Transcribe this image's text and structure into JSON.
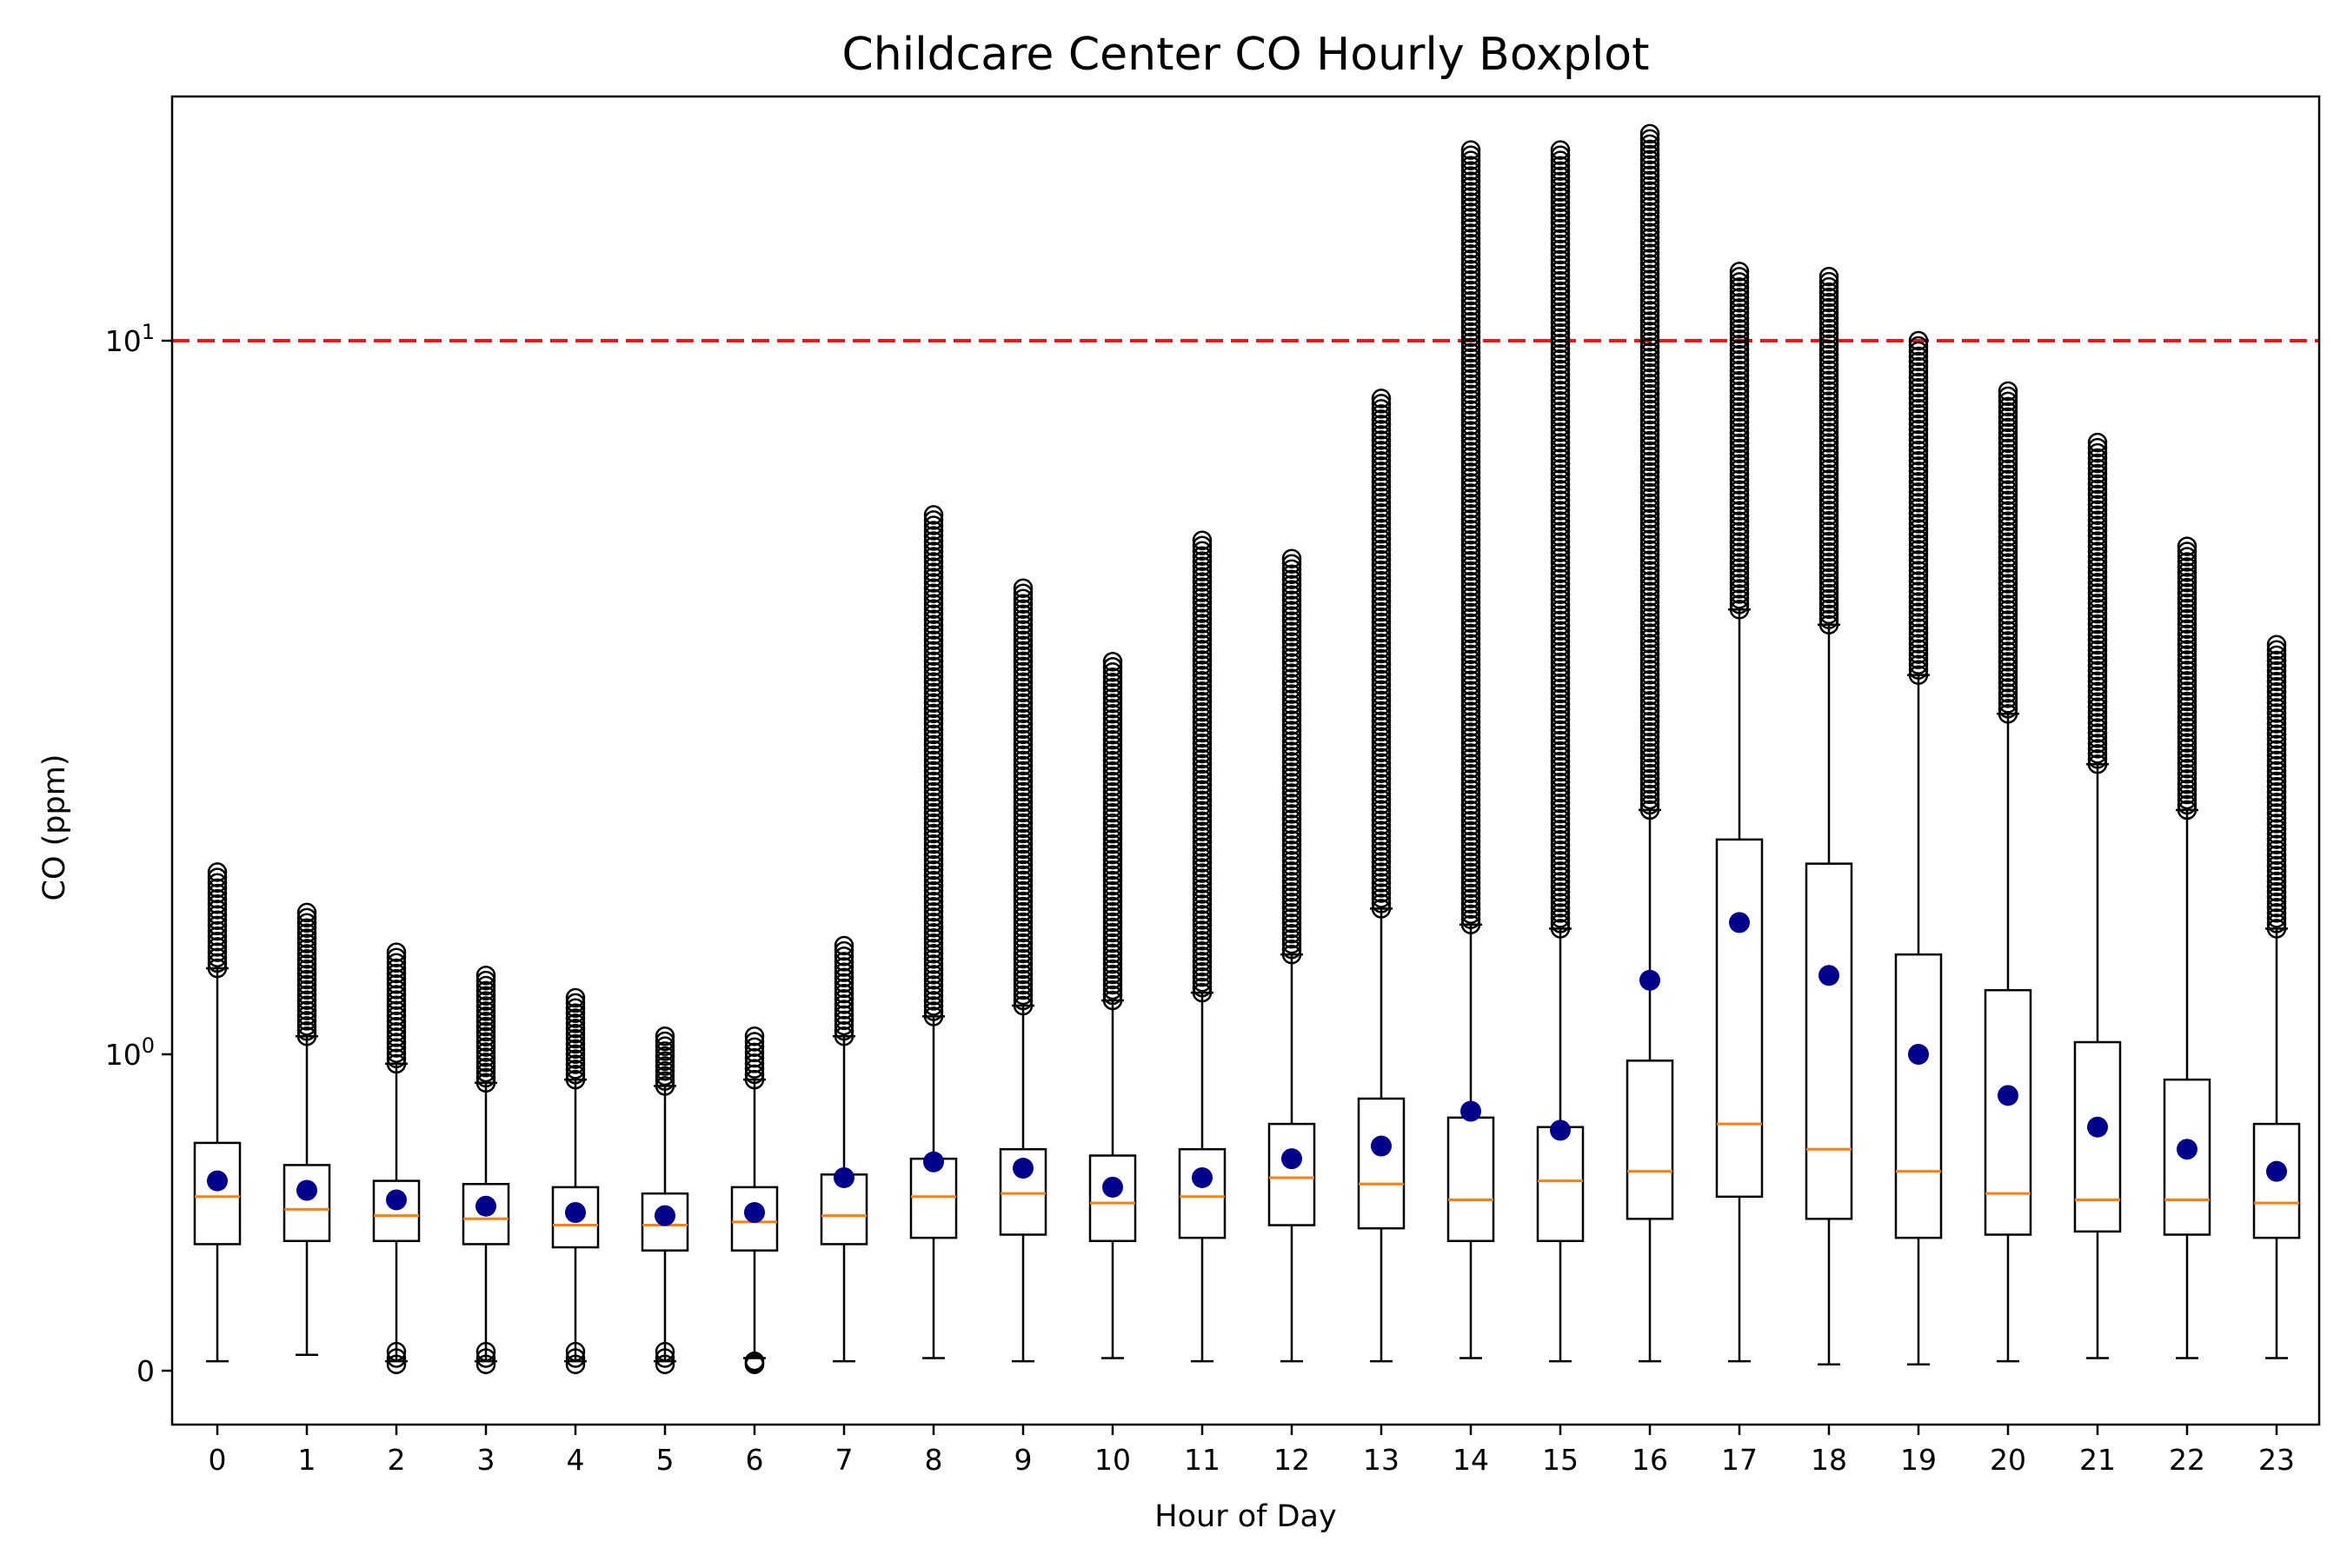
{
  "chart_data": {
    "type": "boxplot",
    "title": "Childcare Center CO Hourly Boxplot",
    "xlabel": "Hour of Day",
    "ylabel": "CO (ppm)",
    "yscale": "symlog",
    "ytick_labels": [
      "0",
      "10⁰",
      "10¹"
    ],
    "ytick_values": [
      0,
      1,
      10
    ],
    "threshold": {
      "value": 10,
      "color": "#e41a1c",
      "style": "dashed"
    },
    "colors": {
      "median": "#ff7f0e",
      "mean": "#00008b",
      "box": "#000000",
      "flier": "#000000"
    },
    "grid": false,
    "categories": [
      "0",
      "1",
      "2",
      "3",
      "4",
      "5",
      "6",
      "7",
      "8",
      "9",
      "10",
      "11",
      "12",
      "13",
      "14",
      "15",
      "16",
      "17",
      "18",
      "19",
      "20",
      "21",
      "22",
      "23"
    ],
    "boxes": [
      {
        "whislo": 0.03,
        "q1": 0.4,
        "med": 0.55,
        "q3": 0.72,
        "whishi": 1.32,
        "mean": 0.6,
        "fliers_hi": [
          1.32,
          1.8
        ],
        "fliers_lo": []
      },
      {
        "whislo": 0.05,
        "q1": 0.41,
        "med": 0.51,
        "q3": 0.65,
        "whishi": 1.06,
        "mean": 0.57,
        "fliers_hi": [
          1.06,
          1.58
        ],
        "fliers_lo": []
      },
      {
        "whislo": 0.03,
        "q1": 0.41,
        "med": 0.49,
        "q3": 0.6,
        "whishi": 0.97,
        "mean": 0.54,
        "fliers_hi": [
          0.97,
          1.39
        ],
        "fliers_lo": [
          0.02,
          0.06
        ]
      },
      {
        "whislo": 0.03,
        "q1": 0.4,
        "med": 0.48,
        "q3": 0.59,
        "whishi": 0.91,
        "mean": 0.52,
        "fliers_hi": [
          0.91,
          1.29
        ],
        "fliers_lo": [
          0.02,
          0.06
        ]
      },
      {
        "whislo": 0.03,
        "q1": 0.39,
        "med": 0.46,
        "q3": 0.58,
        "whishi": 0.92,
        "mean": 0.5,
        "fliers_hi": [
          0.92,
          1.2
        ],
        "fliers_lo": [
          0.02,
          0.06
        ]
      },
      {
        "whislo": 0.03,
        "q1": 0.38,
        "med": 0.46,
        "q3": 0.56,
        "whishi": 0.9,
        "mean": 0.49,
        "fliers_hi": [
          0.9,
          1.06
        ],
        "fliers_lo": [
          0.02,
          0.06
        ]
      },
      {
        "whislo": 0.04,
        "q1": 0.38,
        "med": 0.47,
        "q3": 0.58,
        "whishi": 0.92,
        "mean": 0.5,
        "fliers_hi": [
          0.92,
          1.06
        ],
        "fliers_lo": [
          0.02,
          0.03
        ]
      },
      {
        "whislo": 0.03,
        "q1": 0.4,
        "med": 0.49,
        "q3": 0.62,
        "whishi": 1.06,
        "mean": 0.61,
        "fliers_hi": [
          1.06,
          1.42
        ],
        "fliers_lo": []
      },
      {
        "whislo": 0.04,
        "q1": 0.42,
        "med": 0.55,
        "q3": 0.67,
        "whishi": 1.13,
        "mean": 0.66,
        "fliers_hi": [
          1.13,
          5.7
        ],
        "fliers_lo": []
      },
      {
        "whislo": 0.03,
        "q1": 0.43,
        "med": 0.56,
        "q3": 0.7,
        "whishi": 1.17,
        "mean": 0.64,
        "fliers_hi": [
          1.17,
          4.5
        ],
        "fliers_lo": []
      },
      {
        "whislo": 0.04,
        "q1": 0.41,
        "med": 0.53,
        "q3": 0.68,
        "whishi": 1.19,
        "mean": 0.58,
        "fliers_hi": [
          1.19,
          3.55
        ],
        "fliers_lo": []
      },
      {
        "whislo": 0.03,
        "q1": 0.42,
        "med": 0.55,
        "q3": 0.7,
        "whishi": 1.22,
        "mean": 0.61,
        "fliers_hi": [
          1.22,
          5.25
        ],
        "fliers_lo": []
      },
      {
        "whislo": 0.03,
        "q1": 0.46,
        "med": 0.61,
        "q3": 0.78,
        "whishi": 1.38,
        "mean": 0.67,
        "fliers_hi": [
          1.38,
          4.95
        ],
        "fliers_lo": []
      },
      {
        "whislo": 0.03,
        "q1": 0.45,
        "med": 0.59,
        "q3": 0.86,
        "whishi": 1.6,
        "mean": 0.71,
        "fliers_hi": [
          1.6,
          8.3
        ],
        "fliers_lo": []
      },
      {
        "whislo": 0.04,
        "q1": 0.41,
        "med": 0.54,
        "q3": 0.8,
        "whishi": 1.52,
        "mean": 0.82,
        "fliers_hi": [
          1.52,
          18.5
        ],
        "fliers_lo": []
      },
      {
        "whislo": 0.03,
        "q1": 0.41,
        "med": 0.6,
        "q3": 0.77,
        "whishi": 1.5,
        "mean": 0.76,
        "fliers_hi": [
          1.5,
          18.5
        ],
        "fliers_lo": []
      },
      {
        "whislo": 0.03,
        "q1": 0.48,
        "med": 0.63,
        "q3": 0.98,
        "whishi": 2.2,
        "mean": 1.27,
        "fliers_hi": [
          2.2,
          19.5
        ],
        "fliers_lo": []
      },
      {
        "whislo": 0.03,
        "q1": 0.55,
        "med": 0.78,
        "q3": 2.0,
        "whishi": 4.2,
        "mean": 1.53,
        "fliers_hi": [
          4.2,
          12.5
        ],
        "fliers_lo": []
      },
      {
        "whislo": 0.02,
        "q1": 0.48,
        "med": 0.7,
        "q3": 1.85,
        "whishi": 4.0,
        "mean": 1.29,
        "fliers_hi": [
          4.0,
          12.3
        ],
        "fliers_lo": []
      },
      {
        "whislo": 0.02,
        "q1": 0.42,
        "med": 0.63,
        "q3": 1.38,
        "whishi": 3.4,
        "mean": 1.0,
        "fliers_hi": [
          3.4,
          10.0
        ],
        "fliers_lo": []
      },
      {
        "whislo": 0.03,
        "q1": 0.43,
        "med": 0.56,
        "q3": 1.23,
        "whishi": 3.0,
        "mean": 0.87,
        "fliers_hi": [
          3.0,
          8.5
        ],
        "fliers_lo": []
      },
      {
        "whislo": 0.04,
        "q1": 0.44,
        "med": 0.54,
        "q3": 1.04,
        "whishi": 2.55,
        "mean": 0.77,
        "fliers_hi": [
          2.55,
          7.2
        ],
        "fliers_lo": []
      },
      {
        "whislo": 0.04,
        "q1": 0.43,
        "med": 0.54,
        "q3": 0.92,
        "whishi": 2.2,
        "mean": 0.7,
        "fliers_hi": [
          2.2,
          5.15
        ],
        "fliers_lo": []
      },
      {
        "whislo": 0.04,
        "q1": 0.42,
        "med": 0.53,
        "q3": 0.78,
        "whishi": 1.5,
        "mean": 0.63,
        "fliers_hi": [
          1.5,
          3.75
        ],
        "fliers_lo": []
      }
    ]
  }
}
